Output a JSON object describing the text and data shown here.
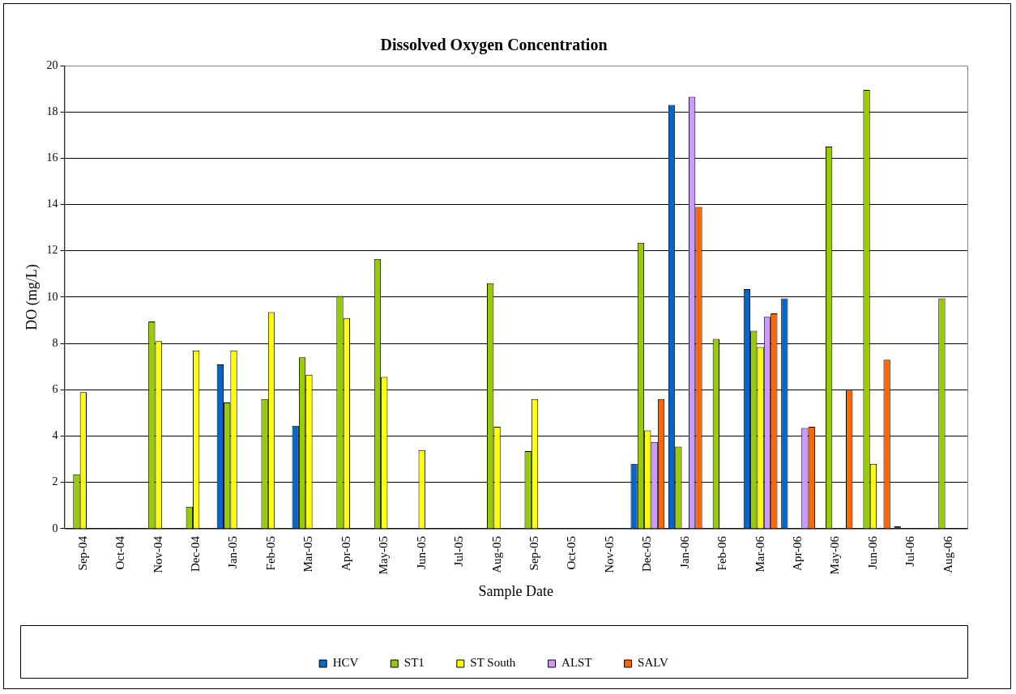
{
  "chart_data": {
    "type": "bar",
    "title": "Dissolved Oxygen Concentration",
    "xlabel": "Sample Date",
    "ylabel": "DO (mg/L)",
    "categories": [
      "Sep-04",
      "Oct-04",
      "Nov-04",
      "Dec-04",
      "Jan-05",
      "Feb-05",
      "Mar-05",
      "Apr-05",
      "May-05",
      "Jun-05",
      "Jul-05",
      "Aug-05",
      "Sep-05",
      "Oct-05",
      "Nov-05",
      "Dec-05",
      "Jan-06",
      "Feb-06",
      "Mar-06",
      "Apr-06",
      "May-06",
      "Jun-06",
      "Jul-06",
      "Aug-06"
    ],
    "series": [
      {
        "name": "HCV",
        "color": "#0066cc",
        "values": [
          null,
          null,
          null,
          null,
          7.1,
          null,
          4.45,
          null,
          null,
          null,
          null,
          null,
          null,
          null,
          null,
          2.8,
          18.3,
          null,
          10.35,
          9.95,
          null,
          null,
          0.1,
          null
        ]
      },
      {
        "name": "ST1",
        "color": "#99cc00",
        "values": [
          2.35,
          null,
          8.95,
          0.95,
          5.45,
          5.6,
          7.4,
          10.05,
          11.65,
          null,
          null,
          10.6,
          3.35,
          null,
          null,
          12.35,
          3.55,
          8.2,
          8.55,
          null,
          16.5,
          18.95,
          null,
          9.95
        ]
      },
      {
        "name": "ST South",
        "color": "#ffff00",
        "values": [
          5.9,
          null,
          8.1,
          7.7,
          7.7,
          9.35,
          6.65,
          9.1,
          6.55,
          3.4,
          null,
          4.4,
          5.6,
          null,
          null,
          4.25,
          null,
          null,
          7.85,
          null,
          null,
          2.8,
          null,
          null
        ]
      },
      {
        "name": "ALST",
        "color": "#cc99ff",
        "values": [
          null,
          null,
          null,
          null,
          null,
          null,
          null,
          null,
          null,
          null,
          null,
          null,
          null,
          null,
          null,
          3.75,
          18.65,
          null,
          9.15,
          4.35,
          null,
          null,
          null,
          null
        ]
      },
      {
        "name": "SALV",
        "color": "#ff6600",
        "values": [
          null,
          null,
          null,
          null,
          null,
          null,
          null,
          null,
          null,
          null,
          null,
          null,
          null,
          null,
          null,
          5.6,
          13.9,
          null,
          9.3,
          4.4,
          6.0,
          7.3,
          null,
          null
        ]
      }
    ],
    "ylim": [
      0,
      20
    ],
    "yticks": [
      0,
      2,
      4,
      6,
      8,
      10,
      12,
      14,
      16,
      18,
      20
    ],
    "grid": "y",
    "legend": "bottom"
  }
}
